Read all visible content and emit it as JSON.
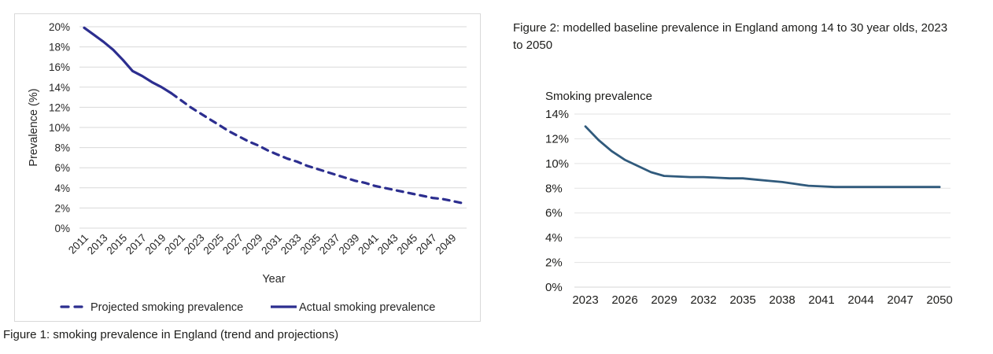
{
  "page": {
    "background": "#ffffff"
  },
  "figure1": {
    "caption": "Figure 1: smoking prevalence in England (trend and projections)"
  },
  "figure2": {
    "title": "Figure 2: modelled baseline prevalence in England among 14 to 30 year olds, 2023 to 2050"
  },
  "chart_data": [
    {
      "id": "figure1",
      "type": "line",
      "title": "",
      "xlabel": "Year",
      "ylabel": "Prevalence (%)",
      "ylim": [
        0,
        20
      ],
      "ytick_step": 2,
      "ytick_suffix": "%",
      "xticks": [
        2011,
        2013,
        2015,
        2017,
        2019,
        2021,
        2023,
        2025,
        2027,
        2029,
        2031,
        2033,
        2035,
        2037,
        2039,
        2041,
        2043,
        2045,
        2047,
        2049
      ],
      "xlim": [
        2011,
        2050
      ],
      "grid": true,
      "legend_position": "bottom",
      "line_color": "#2c2e8f",
      "gridline_color": "#d9d9d9",
      "text_color": "#262626",
      "series": [
        {
          "name": "Projected smoking prevalence",
          "style": "dashed",
          "x": [
            2020,
            2021,
            2022,
            2023,
            2024,
            2025,
            2026,
            2027,
            2028,
            2029,
            2030,
            2031,
            2032,
            2033,
            2034,
            2035,
            2036,
            2037,
            2038,
            2039,
            2040,
            2041,
            2042,
            2043,
            2044,
            2045,
            2046,
            2047,
            2048,
            2049,
            2050
          ],
          "values": [
            13.4,
            12.7,
            12.0,
            11.4,
            10.8,
            10.2,
            9.6,
            9.1,
            8.6,
            8.2,
            7.7,
            7.3,
            6.9,
            6.6,
            6.2,
            5.9,
            5.6,
            5.3,
            5.0,
            4.7,
            4.5,
            4.2,
            4.0,
            3.8,
            3.6,
            3.4,
            3.2,
            3.0,
            2.9,
            2.7,
            2.5
          ]
        },
        {
          "name": "Actual smoking prevalence",
          "style": "solid",
          "x": [
            2011,
            2012,
            2013,
            2014,
            2015,
            2016,
            2017,
            2018,
            2019,
            2020
          ],
          "values": [
            19.9,
            19.2,
            18.5,
            17.7,
            16.7,
            15.6,
            15.1,
            14.5,
            14.0,
            13.4
          ]
        }
      ]
    },
    {
      "id": "figure2",
      "type": "line",
      "title": "Smoking prevalence",
      "xlabel": "",
      "ylabel": "",
      "ylim": [
        0,
        14
      ],
      "ytick_step": 2,
      "ytick_suffix": "%",
      "xticks": [
        2023,
        2026,
        2029,
        2032,
        2035,
        2038,
        2041,
        2044,
        2047,
        2050
      ],
      "xlim": [
        2023,
        2050
      ],
      "grid": true,
      "legend_position": "none",
      "line_color": "#305a7c",
      "gridline_color": "#e3e3e3",
      "baseline_color": "#d6d6d6",
      "text_color": "#1d1d1b",
      "series": [
        {
          "name": "Modelled baseline smoking prevalence",
          "style": "solid",
          "x": [
            2023,
            2024,
            2025,
            2026,
            2027,
            2028,
            2029,
            2030,
            2031,
            2032,
            2033,
            2034,
            2035,
            2036,
            2037,
            2038,
            2039,
            2040,
            2041,
            2042,
            2043,
            2044,
            2045,
            2046,
            2047,
            2048,
            2049,
            2050
          ],
          "values": [
            13.0,
            11.9,
            11.0,
            10.3,
            9.8,
            9.3,
            9.0,
            8.95,
            8.9,
            8.9,
            8.85,
            8.8,
            8.8,
            8.7,
            8.6,
            8.5,
            8.35,
            8.2,
            8.15,
            8.1,
            8.1,
            8.1,
            8.1,
            8.1,
            8.1,
            8.1,
            8.1,
            8.1
          ]
        }
      ]
    }
  ]
}
